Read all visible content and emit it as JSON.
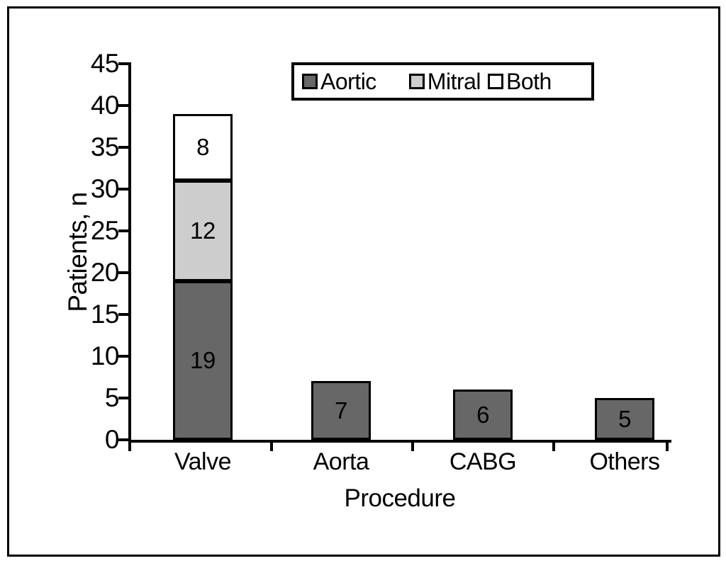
{
  "figure": {
    "background": "#ffffff",
    "frame_color": "#000000",
    "text_color": "#000000"
  },
  "chart_data": {
    "type": "bar",
    "stacked": true,
    "title": "",
    "xlabel": "Procedure",
    "ylabel": "Patients, n",
    "ylim": [
      0,
      45
    ],
    "yticks": [
      0,
      5,
      10,
      15,
      20,
      25,
      30,
      35,
      40,
      45
    ],
    "grid": false,
    "legend_position": "top-center",
    "legend": {
      "entries": [
        {
          "label": "Aortic",
          "color": "#676767"
        },
        {
          "label": "Mitral",
          "color": "#cdcdcd"
        },
        {
          "label": "Both",
          "color": "#ffffff"
        }
      ]
    },
    "categories": [
      "Valve",
      "Aorta",
      "CABG",
      "Others"
    ],
    "bars": [
      {
        "category": "Valve",
        "segments": [
          {
            "series": "Aortic",
            "value": 19,
            "color": "#676767"
          },
          {
            "series": "Mitral",
            "value": 12,
            "color": "#cdcdcd"
          },
          {
            "series": "Both",
            "value": 8,
            "color": "#ffffff"
          }
        ]
      },
      {
        "category": "Aorta",
        "segments": [
          {
            "series": "",
            "value": 7,
            "color": "#676767"
          }
        ]
      },
      {
        "category": "CABG",
        "segments": [
          {
            "series": "",
            "value": 6,
            "color": "#676767"
          }
        ]
      },
      {
        "category": "Others",
        "segments": [
          {
            "series": "",
            "value": 5,
            "color": "#676767"
          }
        ]
      }
    ]
  }
}
